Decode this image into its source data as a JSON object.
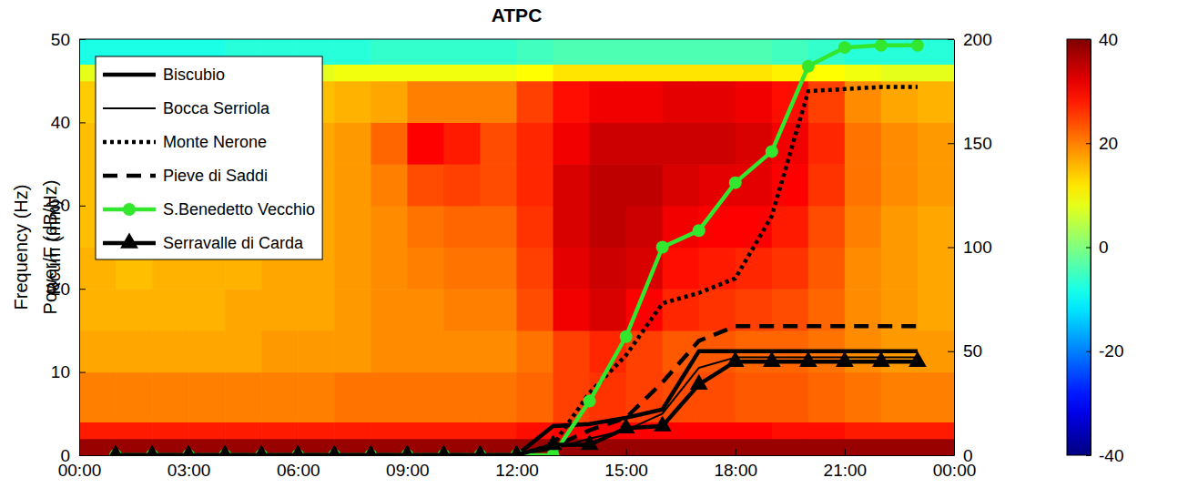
{
  "chart_data": {
    "type": "heatmap",
    "title": "ATPC",
    "ylabel": "Frequency (Hz)",
    "y2label": "Rcum (mm)",
    "xlim": [
      0,
      24
    ],
    "xticks": [
      {
        "value": 0,
        "label": "00:00"
      },
      {
        "value": 3,
        "label": "03:00"
      },
      {
        "value": 6,
        "label": "06:00"
      },
      {
        "value": 9,
        "label": "09:00"
      },
      {
        "value": 12,
        "label": "12:00"
      },
      {
        "value": 15,
        "label": "15:00"
      },
      {
        "value": 18,
        "label": "18:00"
      },
      {
        "value": 21,
        "label": "21:00"
      },
      {
        "value": 24,
        "label": "00:00"
      }
    ],
    "ylim": [
      0,
      50
    ],
    "yticks": [
      0,
      10,
      20,
      30,
      40,
      50
    ],
    "y2lim": [
      0,
      200
    ],
    "y2ticks": [
      0,
      50,
      100,
      150,
      200
    ],
    "legend": "upper left",
    "heatmap": {
      "x_edges": [
        0,
        1,
        2,
        3,
        4,
        5,
        6,
        7,
        8,
        9,
        10,
        11,
        12,
        13,
        14,
        15,
        16,
        17,
        18,
        19,
        20,
        21,
        22,
        23,
        24
      ],
      "y_edges": [
        0,
        2,
        4,
        10,
        15,
        20,
        25,
        30,
        35,
        40,
        45,
        47,
        50
      ],
      "values": [
        [
          38,
          28,
          20,
          17,
          16,
          16,
          15,
          15,
          15,
          14,
          8,
          -8
        ],
        [
          38,
          28,
          20,
          17,
          16,
          15,
          15,
          15,
          15,
          14,
          8,
          -8
        ],
        [
          38,
          28,
          20,
          17,
          16,
          16,
          16,
          15,
          15,
          14,
          8,
          -8
        ],
        [
          38,
          28,
          20,
          17,
          16,
          16,
          15,
          15,
          16,
          14,
          8,
          -8
        ],
        [
          38,
          28,
          20,
          17,
          17,
          16,
          16,
          16,
          16,
          15,
          8,
          -7
        ],
        [
          38,
          28,
          20,
          18,
          17,
          17,
          16,
          16,
          16,
          15,
          8,
          -7
        ],
        [
          38,
          28,
          20,
          18,
          17,
          17,
          17,
          17,
          17,
          15,
          8,
          -7
        ],
        [
          38,
          28,
          21,
          18,
          18,
          18,
          18,
          18,
          18,
          16,
          9,
          -7
        ],
        [
          38,
          28,
          21,
          19,
          19,
          19,
          19,
          20,
          22,
          17,
          9,
          -6
        ],
        [
          38,
          28,
          21,
          19,
          19,
          20,
          21,
          24,
          30,
          20,
          9,
          -6
        ],
        [
          38,
          28,
          21,
          19,
          20,
          21,
          22,
          25,
          28,
          20,
          9,
          -6
        ],
        [
          38,
          28,
          21,
          19,
          20,
          21,
          22,
          24,
          24,
          20,
          9,
          -6
        ],
        [
          38,
          29,
          22,
          21,
          24,
          25,
          26,
          27,
          27,
          25,
          10,
          -5
        ],
        [
          38,
          30,
          25,
          25,
          31,
          32,
          33,
          33,
          31,
          29,
          12,
          -4
        ],
        [
          38,
          30,
          26,
          27,
          33,
          34,
          35,
          35,
          34,
          31,
          12,
          -4
        ],
        [
          38,
          30,
          25,
          25,
          30,
          33,
          34,
          35,
          34,
          31,
          12,
          -4
        ],
        [
          38,
          30,
          24,
          23,
          27,
          29,
          31,
          33,
          34,
          32,
          12,
          -4
        ],
        [
          38,
          30,
          24,
          23,
          26,
          28,
          30,
          32,
          34,
          32,
          12,
          -4
        ],
        [
          38,
          30,
          23,
          22,
          25,
          27,
          30,
          32,
          33,
          31,
          12,
          -4
        ],
        [
          38,
          29,
          23,
          22,
          24,
          26,
          28,
          30,
          31,
          29,
          11,
          -5
        ],
        [
          38,
          29,
          22,
          21,
          22,
          23,
          24,
          26,
          27,
          25,
          10,
          -6
        ],
        [
          38,
          28,
          21,
          19,
          19,
          19,
          20,
          21,
          21,
          19,
          9,
          -7
        ],
        [
          38,
          28,
          20,
          18,
          18,
          18,
          18,
          19,
          19,
          17,
          8,
          -7
        ],
        [
          38,
          28,
          20,
          18,
          17,
          17,
          17,
          18,
          18,
          16,
          8,
          -7
        ]
      ]
    },
    "colorbar": {
      "range": [
        -40,
        40
      ],
      "ticks": [
        -40,
        -20,
        0,
        20,
        40
      ],
      "label": "Power/F (dB/Hz)"
    },
    "x": [
      1,
      2,
      3,
      4,
      5,
      6,
      7,
      8,
      9,
      10,
      11,
      12,
      13,
      14,
      15,
      16,
      17,
      18,
      19,
      20,
      21,
      22,
      23
    ],
    "series": [
      {
        "name": "Biscubio",
        "type": "line",
        "axis": "y2",
        "color": "#000000",
        "line_style": "solid",
        "values": [
          0,
          0,
          0,
          0,
          0,
          0,
          0,
          0,
          0,
          0,
          0,
          0,
          14,
          15,
          18,
          22,
          50,
          50,
          50,
          50,
          50,
          50,
          50
        ]
      },
      {
        "name": "Bocca Serriola",
        "type": "line",
        "axis": "y2",
        "color": "#000000",
        "line_style": "thin",
        "values": [
          0,
          0,
          0,
          0,
          0,
          0,
          0,
          0,
          0,
          0,
          0,
          0,
          3,
          8,
          12,
          20,
          42,
          47,
          47,
          47,
          47,
          47,
          47
        ]
      },
      {
        "name": "Monte Nerone",
        "type": "line",
        "axis": "y2",
        "color": "#000000",
        "line_style": "dotted",
        "values": [
          0,
          0,
          0,
          0,
          0,
          0,
          0,
          0,
          0,
          0,
          0,
          0,
          5,
          30,
          48,
          73,
          78,
          85,
          115,
          175,
          176,
          177,
          177
        ]
      },
      {
        "name": "Pieve di Saddi",
        "type": "line",
        "axis": "y2",
        "color": "#000000",
        "line_style": "dashed",
        "values": [
          0,
          0,
          0,
          0,
          0,
          0,
          0,
          0,
          0,
          0,
          0,
          0,
          4,
          12,
          18,
          35,
          55,
          62,
          62,
          62,
          62,
          62,
          62
        ]
      },
      {
        "name": "S.Benedetto Vecchio",
        "type": "line",
        "axis": "y2",
        "color": "#33e62e",
        "line_style": "solid",
        "marker": "circle",
        "values": [
          0,
          0,
          0,
          0,
          0,
          0,
          0,
          0,
          0,
          0,
          0,
          0,
          0,
          26,
          57,
          100,
          108,
          131,
          146,
          187,
          196,
          197,
          197
        ]
      },
      {
        "name": "Serravalle di Carda",
        "type": "line",
        "axis": "y2",
        "color": "#000000",
        "line_style": "solid",
        "marker": "triangle",
        "values": [
          0,
          0,
          0,
          0,
          0,
          0,
          0,
          0,
          0,
          0,
          0,
          0,
          5,
          5,
          13,
          14,
          34,
          45,
          45,
          45,
          45,
          45,
          45
        ]
      }
    ]
  }
}
